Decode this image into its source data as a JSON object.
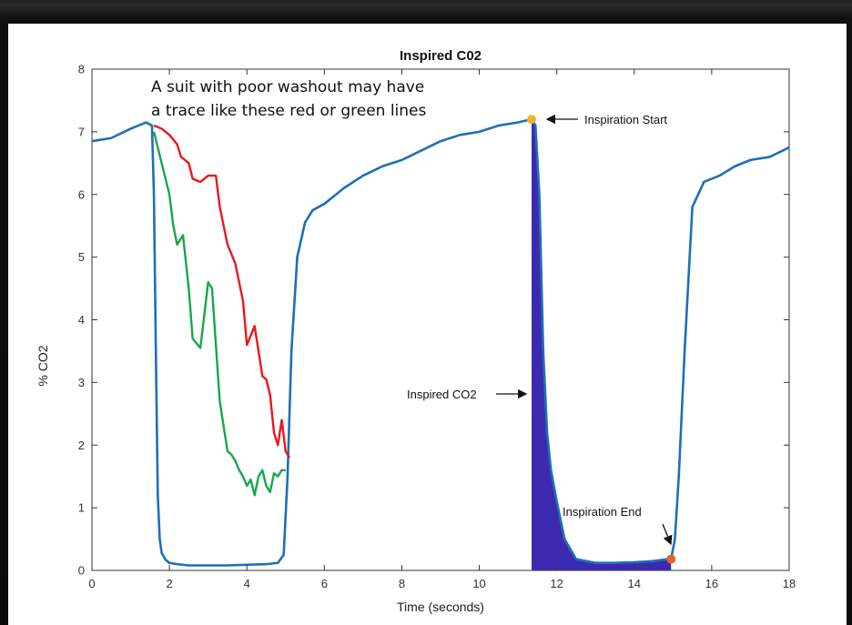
{
  "chart_data": {
    "type": "line",
    "title": "Inspired C02",
    "xlabel": "Time (seconds)",
    "ylabel": "% CO2",
    "xlim": [
      0,
      18
    ],
    "ylim": [
      0,
      8
    ],
    "xticks": [
      "0",
      "2",
      "4",
      "6",
      "8",
      "10",
      "12",
      "14",
      "16",
      "18"
    ],
    "yticks": [
      "0",
      "1",
      "2",
      "3",
      "4",
      "5",
      "6",
      "7",
      "8"
    ],
    "grid": false,
    "series": [
      {
        "color": "#1f6fb8",
        "x": [
          0,
          0.5,
          1.0,
          1.4,
          1.55,
          1.6,
          1.65,
          1.7,
          1.75,
          1.8,
          1.9,
          2.0,
          2.2,
          2.5,
          3.0,
          3.5,
          4.0,
          4.5,
          4.8,
          4.95,
          5.05,
          5.15,
          5.3,
          5.5,
          5.7,
          6.0,
          6.5,
          7.0,
          7.5,
          8.0,
          8.5,
          9.0,
          9.5,
          10.0,
          10.5,
          11.0,
          11.35,
          11.45,
          11.55,
          11.65,
          11.75,
          11.85,
          12.0,
          12.2,
          12.5,
          13.0,
          13.5,
          14.0,
          14.5,
          14.85,
          14.95,
          15.05,
          15.15,
          15.3,
          15.5,
          15.8,
          16.2,
          16.6,
          17.0,
          17.5,
          18.0
        ],
        "y": [
          6.85,
          6.9,
          7.05,
          7.15,
          7.1,
          6.0,
          3.5,
          1.2,
          0.5,
          0.28,
          0.17,
          0.12,
          0.1,
          0.08,
          0.08,
          0.08,
          0.09,
          0.1,
          0.12,
          0.25,
          1.5,
          3.5,
          5.0,
          5.55,
          5.75,
          5.85,
          6.1,
          6.3,
          6.45,
          6.55,
          6.7,
          6.85,
          6.95,
          7.0,
          7.1,
          7.15,
          7.2,
          7.1,
          6.0,
          3.5,
          2.2,
          1.6,
          1.1,
          0.5,
          0.18,
          0.12,
          0.12,
          0.13,
          0.15,
          0.18,
          0.18,
          0.5,
          1.5,
          3.5,
          5.8,
          6.2,
          6.3,
          6.45,
          6.55,
          6.6,
          6.75
        ]
      },
      {
        "color": "#e8191c",
        "x": [
          1.6,
          1.8,
          2.0,
          2.2,
          2.3,
          2.5,
          2.6,
          2.8,
          3.0,
          3.2,
          3.3,
          3.5,
          3.7,
          3.9,
          4.0,
          4.2,
          4.3,
          4.4,
          4.5,
          4.6,
          4.7,
          4.8,
          4.9,
          5.0,
          5.1
        ],
        "y": [
          7.1,
          7.05,
          6.95,
          6.8,
          6.6,
          6.5,
          6.25,
          6.2,
          6.3,
          6.3,
          5.8,
          5.2,
          4.9,
          4.3,
          3.6,
          3.9,
          3.5,
          3.1,
          3.05,
          2.8,
          2.2,
          2.0,
          2.4,
          1.9,
          1.8
        ]
      },
      {
        "color": "#1aa64a",
        "x": [
          1.6,
          1.8,
          2.0,
          2.1,
          2.2,
          2.35,
          2.5,
          2.6,
          2.8,
          3.0,
          3.1,
          3.2,
          3.3,
          3.4,
          3.5,
          3.6,
          3.7,
          3.8,
          3.9,
          4.0,
          4.1,
          4.2,
          4.3,
          4.4,
          4.5,
          4.6,
          4.7,
          4.8,
          4.9,
          5.0
        ],
        "y": [
          7.0,
          6.5,
          6.0,
          5.5,
          5.2,
          5.35,
          4.5,
          3.7,
          3.55,
          4.6,
          4.5,
          3.6,
          2.7,
          2.3,
          1.9,
          1.85,
          1.75,
          1.6,
          1.5,
          1.35,
          1.45,
          1.2,
          1.5,
          1.6,
          1.35,
          1.25,
          1.55,
          1.5,
          1.6,
          1.6
        ]
      }
    ],
    "shaded_region": {
      "color": "#3b2ab0",
      "x": [
        11.35,
        11.45,
        11.55,
        11.65,
        11.75,
        11.85,
        12.0,
        12.2,
        12.5,
        13.0,
        13.5,
        14.0,
        14.5,
        14.85,
        14.95
      ],
      "y": [
        7.2,
        7.1,
        6.0,
        3.5,
        2.2,
        1.6,
        1.1,
        0.5,
        0.18,
        0.12,
        0.12,
        0.13,
        0.15,
        0.18,
        0.18
      ]
    },
    "markers": [
      {
        "name": "inspiration-start-marker",
        "x": 11.35,
        "y": 7.2,
        "color": "#f0b429"
      },
      {
        "name": "inspiration-end-marker",
        "x": 14.95,
        "y": 0.18,
        "color": "#e0642a"
      }
    ],
    "annotations": {
      "note_line1": "A suit with poor washout may have",
      "note_line2": "a trace like these red or green lines",
      "inspiration_start": "Inspiration Start",
      "inspired_co2": "Inspired CO2",
      "inspiration_end": "Inspiration End"
    }
  }
}
